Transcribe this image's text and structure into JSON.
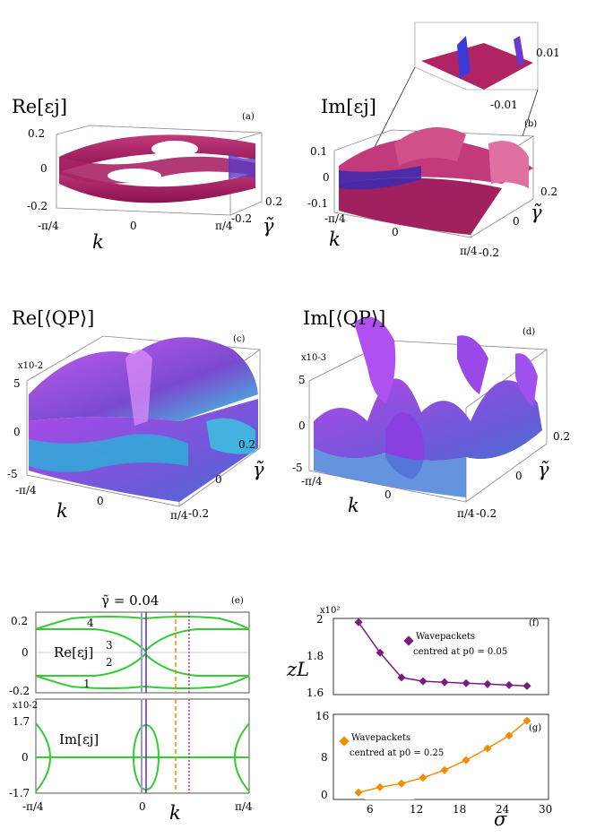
{
  "panels": {
    "a": {
      "title": "Re[εj]",
      "tag": "(a)",
      "z_ticks": [
        "0.2",
        "0",
        "-0.2"
      ],
      "k_ticks": [
        "-π/4",
        "0",
        "π/4"
      ],
      "g_ticks": [
        "-0.2",
        "0.2"
      ],
      "k_label": "k",
      "g_label": "γ̃"
    },
    "b": {
      "title": "Im[εj]",
      "tag": "(b)",
      "z_ticks": [
        "0.1",
        "0",
        "-0.1"
      ],
      "k_ticks": [
        "-π/4",
        "0",
        "π/4"
      ],
      "g_ticks": [
        "0.2",
        "0",
        "-0.2"
      ],
      "k_label": "k",
      "g_label": "γ̃",
      "inset_ticks": [
        "0.01",
        "-0.01"
      ]
    },
    "c": {
      "title": "Re[⟨QP⟩]",
      "tag": "(c)",
      "scale": "x10-2",
      "z_ticks": [
        "5",
        "0",
        "-5"
      ],
      "k_ticks": [
        "-π/4",
        "0",
        "π/4"
      ],
      "g_ticks": [
        "0.2",
        "0",
        "-0.2"
      ],
      "k_label": "k",
      "g_label": "γ̃"
    },
    "d": {
      "title": "Im[⟨QP⟩]",
      "tag": "(d)",
      "scale": "x10-3",
      "z_ticks": [
        "5",
        "0",
        "-5"
      ],
      "k_ticks": [
        "-π/4",
        "0",
        "π/4"
      ],
      "g_ticks": [
        "0.2",
        "0",
        "-0.2"
      ],
      "k_label": "k",
      "g_label": "γ̃"
    },
    "e": {
      "tag": "(e)",
      "gamma_label": "γ̃ = 0.04",
      "re_label": "Re[εj]",
      "im_label": "Im[εj]",
      "im_scale": "x10-2",
      "re_ticks": [
        "0.2",
        "0",
        "-0.2"
      ],
      "im_ticks": [
        "1.7",
        "0",
        "-1.7"
      ],
      "band_numbers": [
        "4",
        "3",
        "2",
        "1"
      ],
      "k_ticks": [
        "-π/4",
        "0",
        "π/4"
      ],
      "k_label": "k"
    },
    "f": {
      "tag": "(f)",
      "scale": "x10²",
      "y_ticks": [
        "2",
        "1.8",
        "1.6"
      ],
      "ylabel": "zL",
      "legend_line1": "Wavepackets",
      "legend_line2": "centred at p0 = 0.05"
    },
    "g": {
      "tag": "(g)",
      "y_ticks": [
        "16",
        "8",
        "0"
      ],
      "x_ticks": [
        "6",
        "12",
        "18",
        "24",
        "30"
      ],
      "xlabel": "σ",
      "legend_line1": "Wavepackets",
      "legend_line2": "centred at p0 = 0.25"
    }
  },
  "chart_data": [
    {
      "type": "line",
      "panel": "f",
      "x": [
        3.5,
        6.5,
        9.5,
        12.5,
        15.5,
        18.5,
        21.5,
        24.5,
        27
      ],
      "y": [
        1.98,
        1.82,
        1.69,
        1.67,
        1.665,
        1.66,
        1.655,
        1.65,
        1.645
      ],
      "ylim": [
        1.6,
        2.0
      ],
      "xlim": [
        0,
        30
      ],
      "color": "#7a1a80"
    },
    {
      "type": "line",
      "panel": "g",
      "x": [
        3.5,
        6.5,
        9.5,
        12.5,
        15.5,
        18.5,
        21.5,
        24.5,
        27
      ],
      "y": [
        1.3,
        2.3,
        3.0,
        4.1,
        5.5,
        7.4,
        9.6,
        12.0,
        14.8
      ],
      "ylim": [
        0,
        16
      ],
      "xlim": [
        0,
        30
      ],
      "color": "#f28c00"
    }
  ]
}
